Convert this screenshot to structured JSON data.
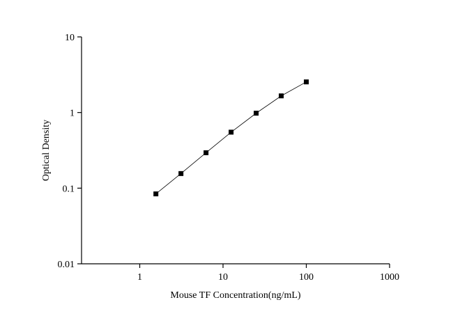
{
  "chart_data": {
    "type": "scatter",
    "x_label": "Mouse TF Concentration(ng/mL)",
    "y_label": "Optical Density",
    "x": [
      1.5625,
      3.125,
      6.25,
      12.5,
      25,
      50,
      100
    ],
    "series": [
      {
        "color": "#000000",
        "values": [
          0.084,
          0.156,
          0.294,
          0.55,
          0.98,
          1.66,
          2.54
        ]
      }
    ],
    "xlim": [
      0.2,
      1000
    ],
    "xticks": [
      1,
      10,
      100,
      1000
    ],
    "ylim": [
      0.01,
      10
    ],
    "yticks": [
      0.01,
      0.1,
      1,
      10
    ],
    "x_log": true,
    "y_log": true,
    "line": true,
    "grid": false
  }
}
